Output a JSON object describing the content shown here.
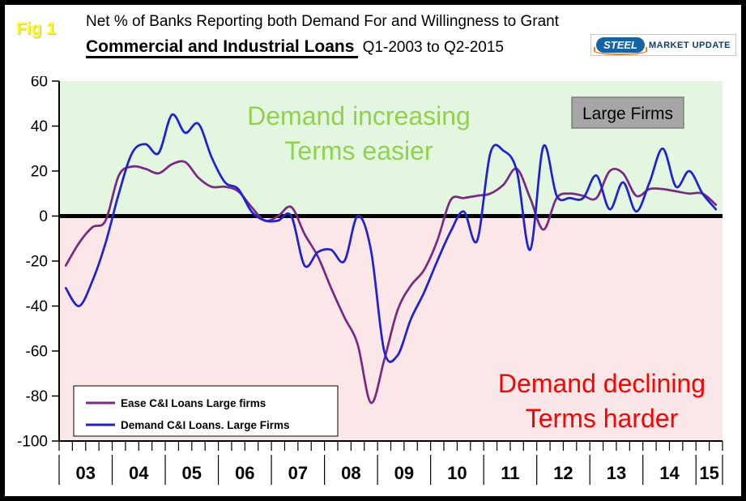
{
  "figure_label": "Fig 1",
  "title": {
    "line1": "Net % of Banks Reporting both Demand For and Willingness to Grant",
    "subject": "Commercial and Industrial Loans",
    "range": " Q1-2003 to Q2-2015"
  },
  "logo": {
    "steel": "STEEL",
    "rest": "MARKET UPDATE"
  },
  "annotations": {
    "positive_line1": "Demand increasing",
    "positive_line2": "Terms easier",
    "negative_line1": "Demand declining",
    "negative_line2": "Terms harder",
    "series_box": "Large Firms"
  },
  "colors": {
    "figure_label": "#ffff00",
    "zone_positive": "#e3f7e0",
    "zone_negative": "#fce7e8",
    "annotation_positive": "#92d050",
    "annotation_negative": "#ff0000",
    "series_box_bg": "#a6a6a6",
    "series_box_border": "#7f7f7f",
    "zero_line": "#000000"
  },
  "chart_data": {
    "type": "line",
    "title": "Net % of Banks Reporting both Demand For and Willingness to Grant Commercial and Industrial Loans, Q1-2003 to Q2-2015",
    "frequency": "quarterly",
    "x_start": "2003 Q1",
    "x_end": "2015 Q2",
    "year_labels": [
      "03",
      "04",
      "05",
      "06",
      "07",
      "08",
      "09",
      "10",
      "11",
      "12",
      "13",
      "14",
      "15"
    ],
    "ylim": [
      -100,
      60
    ],
    "yticks": [
      60,
      40,
      20,
      0,
      -20,
      -40,
      -60,
      -80,
      -100
    ],
    "zero_line": true,
    "grid": false,
    "legend_position": "bottom-left",
    "series": [
      {
        "name": "Ease C&I Loans Large firms",
        "color": "#7a2a82",
        "values": [
          -22,
          -12,
          -5,
          -2,
          18,
          22,
          21,
          19,
          23,
          24,
          17,
          13,
          13,
          11,
          4,
          -2,
          0,
          4,
          -8,
          -18,
          -32,
          -45,
          -57,
          -83,
          -64,
          -42,
          -31,
          -24,
          -11,
          7,
          8,
          9,
          10,
          14,
          21,
          8,
          -6,
          8,
          10,
          9,
          8,
          20,
          19,
          9,
          12,
          12,
          11,
          10,
          10,
          5
        ]
      },
      {
        "name": "Demand C&I Loans. Large Firms",
        "color": "#2121d4",
        "values": [
          -32,
          -40,
          -29,
          -12,
          10,
          28,
          32,
          28,
          45,
          37,
          41,
          26,
          15,
          12,
          2,
          -2,
          -2,
          0,
          -22,
          -16,
          -15,
          -20,
          0,
          -15,
          -60,
          -62,
          -46,
          -34,
          -20,
          -7,
          2,
          -11,
          28,
          29,
          20,
          -15,
          31,
          9,
          8,
          8,
          18,
          3,
          15,
          2,
          15,
          30,
          13,
          20,
          10,
          3
        ]
      }
    ]
  }
}
